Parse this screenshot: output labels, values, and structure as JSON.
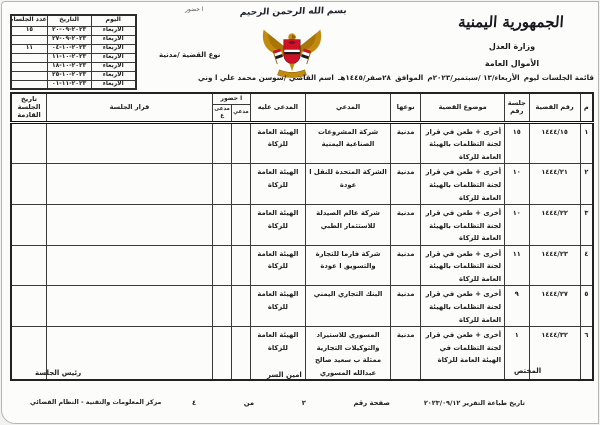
{
  "header": {
    "bismillah": "بسم الله الرحمن الرحيم",
    "country_name": "الجمهورية اليمنية",
    "ministry": "وزارة العدل",
    "division": "الأموال العامة",
    "session_list_label": "قائمة الجلسات ليوم",
    "session_day_date": "الأربعاء/١٣ /سبتمبر/٢٠٢٣م",
    "corresponding_label": "الموافق",
    "hijri_date": "٢٨صفر/١٤٤٥هـ",
    "judge_name_line": "اسم القاضي /سوسن محمد علي ا وني",
    "case_type_line": "نوع القضية /مدنية",
    "stray_note": "ا حضور"
  },
  "schedule_table": {
    "col_day": "اليوم",
    "col_date": "التاريخ",
    "col_count": "عدد الجلسات",
    "rows": [
      {
        "day": "الأربعاء",
        "date": "٢٠٢٣-٠٩-٢٠",
        "count": "١٥"
      },
      {
        "day": "الأربعاء",
        "date": "٢٠٢٣-٠٩-٢٧",
        "count": ""
      },
      {
        "day": "الأربعاء",
        "date": "٢٠٢٣-١٠-٠٤",
        "count": "١١"
      },
      {
        "day": "الأربعاء",
        "date": "٢٠٢٣-١٠-١١",
        "count": ""
      },
      {
        "day": "الأربعاء",
        "date": "٢٠٢٣-١٠-١٨",
        "count": ""
      },
      {
        "day": "الأربعاء",
        "date": "٢٠٢٣-١٠-٢٥",
        "count": ""
      },
      {
        "day": "الأربعاء",
        "date": "٢٠٢٣-١١-٠١",
        "count": ""
      }
    ]
  },
  "cases_table": {
    "headers": {
      "index": "م",
      "case_number": "رقم القضية",
      "session_number": "جلسة رقم",
      "subject": "موضوع القضية",
      "type": "نوعها",
      "plaintiff": "المدعي",
      "defendant": "المدعى عليه",
      "attendance": "ا حضور",
      "attendance_plaintiff": "مدعي",
      "attendance_defendant": "مدعى ع",
      "decision": "قرار الجلسة",
      "next_session_date": "تاريخ الجلسة القادمة"
    },
    "rows": [
      {
        "index": "١",
        "case_number": "١٤٤٤/١٥",
        "session_number": "١٥",
        "subject": "أخرى + طعن في قرار لجنة التظلمات بالهيئة العامة للزكاة",
        "type": "مدنية",
        "plaintiff": "شركة المشروعات الصناعية اليمنية",
        "defendant": "الهيئة العامة للزكاة",
        "attendance_plaintiff": "",
        "attendance_defendant": "",
        "decision": "",
        "next_session_date": ""
      },
      {
        "index": "٢",
        "case_number": "١٤٤٤/٢١",
        "session_number": "١٠",
        "subject": "أخرى + طعن في قرار لجنة التظلمات بالهيئة العامة للزكاة",
        "type": "مدنية",
        "plaintiff": "الشركة المتحدة للنقل ا عودة",
        "defendant": "الهيئة العامة للزكاة",
        "attendance_plaintiff": "",
        "attendance_defendant": "",
        "decision": "",
        "next_session_date": ""
      },
      {
        "index": "٣",
        "case_number": "١٤٤٤/٢٢",
        "session_number": "١٠",
        "subject": "أخرى + طعن في قرار لجنة التظلمات بالهيئة العامة للزكاة",
        "type": "مدنية",
        "plaintiff": "شركة عالم الصيدلة للاستثمار الطبي",
        "defendant": "الهيئة العامة للزكاة",
        "attendance_plaintiff": "",
        "attendance_defendant": "",
        "decision": "",
        "next_session_date": ""
      },
      {
        "index": "٤",
        "case_number": "١٤٤٤/٢٣",
        "session_number": "١١",
        "subject": "أخرى + طعن في قرار لجنة التظلمات بالهيئة العامة للزكاة",
        "type": "مدنية",
        "plaintiff": "شركة فارما للتجارة والتسويق ا عودة",
        "defendant": "الهيئة العامة للزكاة",
        "attendance_plaintiff": "",
        "attendance_defendant": "",
        "decision": "",
        "next_session_date": ""
      },
      {
        "index": "٥",
        "case_number": "١٤٤٤/٢٧",
        "session_number": "٩",
        "subject": "أخرى + طعن في قرار لجنة التظلمات بالهيئة العامة للزكاة",
        "type": "مدنية",
        "plaintiff": "البنك التجاري اليمني",
        "defendant": "الهيئة العامة للزكاة",
        "attendance_plaintiff": "",
        "attendance_defendant": "",
        "decision": "",
        "next_session_date": ""
      },
      {
        "index": "٦",
        "case_number": "١٤٤٤/٣٢",
        "session_number": "١",
        "subject": "أخرى + طعن في قرار لجنة التظلمات في الهيئة العامة للزكاة",
        "type": "مدنية",
        "plaintiff": "المسوري للاستيراد والتوكيلات التجارية ممثلة ب سعيد صالح عبدالله المسوري",
        "defendant": "الهيئة العامة للزكاة",
        "attendance_plaintiff": "",
        "attendance_defendant": "",
        "decision": "",
        "next_session_date": ""
      }
    ]
  },
  "signatures": {
    "specialist": "المختص",
    "secretary": "امين السر",
    "session_president": "رئيس الجلسة"
  },
  "footer": {
    "print_date_line": "تاريخ طباعة التقرير ٢٠٢٣/٠٩/١٢",
    "page_label": "صفحة رقم",
    "page_number": "٢",
    "of_label": "من",
    "total_pages": "٤",
    "system_name": "مركز المعلومات والتقنية - النظام القضائي"
  },
  "emblem": {
    "name": "yemen-coat-of-arms",
    "gold": "#C28A0E",
    "gold_dark": "#8a6008",
    "red": "#CE1126",
    "black": "#1a1a1a",
    "white": "#ffffff"
  }
}
